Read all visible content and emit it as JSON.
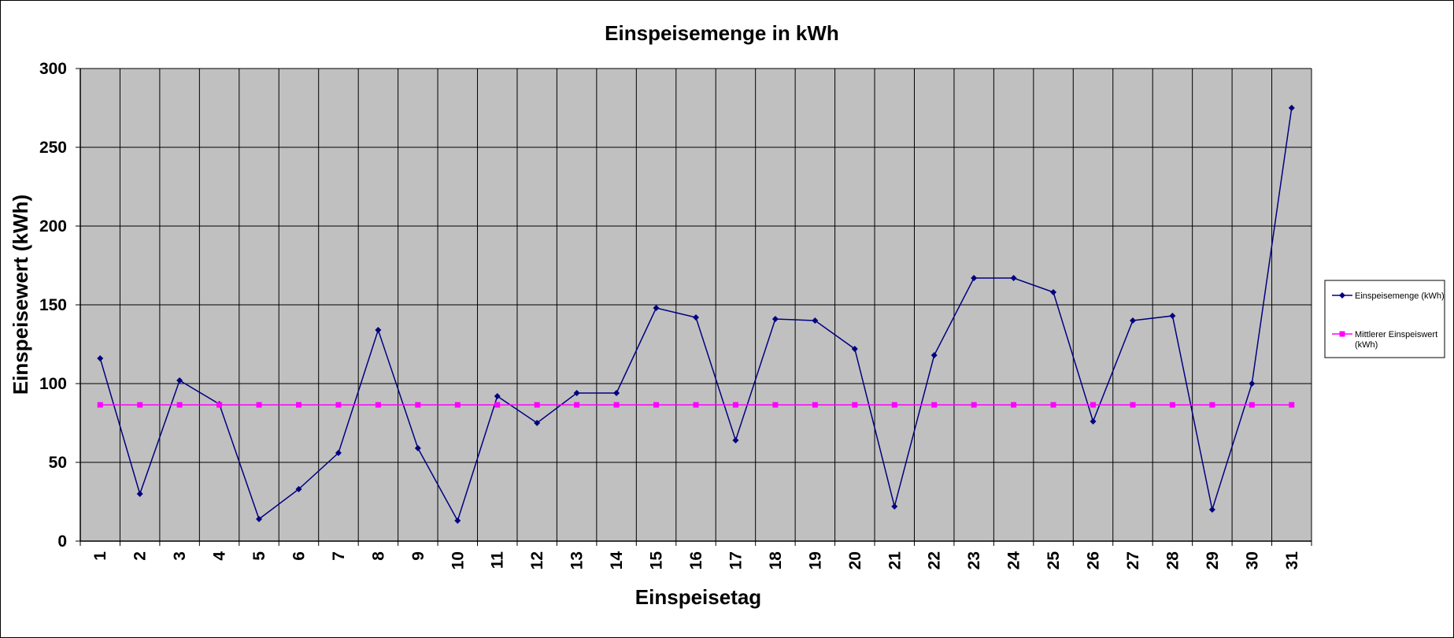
{
  "chart_data": {
    "type": "line",
    "title": "Einspeisemenge in kWh",
    "xlabel": "Einspeisetag",
    "ylabel": "Einspeisewert  (kWh)",
    "categories": [
      "1",
      "2",
      "3",
      "4",
      "5",
      "6",
      "7",
      "8",
      "9",
      "10",
      "11",
      "12",
      "13",
      "14",
      "15",
      "16",
      "17",
      "18",
      "19",
      "20",
      "21",
      "22",
      "23",
      "24",
      "25",
      "26",
      "27",
      "28",
      "29",
      "30",
      "31"
    ],
    "ylim": [
      0,
      300
    ],
    "yticks": [
      0,
      50,
      100,
      150,
      200,
      250,
      300
    ],
    "grid": true,
    "legend_position": "right",
    "plot_background": "#C0C0C0",
    "series": [
      {
        "name": "Einspeisemenge (kWh)",
        "color": "#000080",
        "marker": "diamond",
        "values": [
          116,
          30,
          102,
          87,
          14,
          33,
          56,
          134,
          59,
          13,
          92,
          75,
          94,
          94,
          148,
          142,
          64,
          141,
          140,
          122,
          22,
          118,
          167,
          167,
          158,
          76,
          140,
          143,
          20,
          100,
          275
        ]
      },
      {
        "name": "Mittlerer Einspeiswert (kWh)",
        "color": "#FF00FF",
        "marker": "square",
        "values": [
          86.5,
          86.5,
          86.5,
          86.5,
          86.5,
          86.5,
          86.5,
          86.5,
          86.5,
          86.5,
          86.5,
          86.5,
          86.5,
          86.5,
          86.5,
          86.5,
          86.5,
          86.5,
          86.5,
          86.5,
          86.5,
          86.5,
          86.5,
          86.5,
          86.5,
          86.5,
          86.5,
          86.5,
          86.5,
          86.5,
          86.5
        ]
      }
    ]
  }
}
